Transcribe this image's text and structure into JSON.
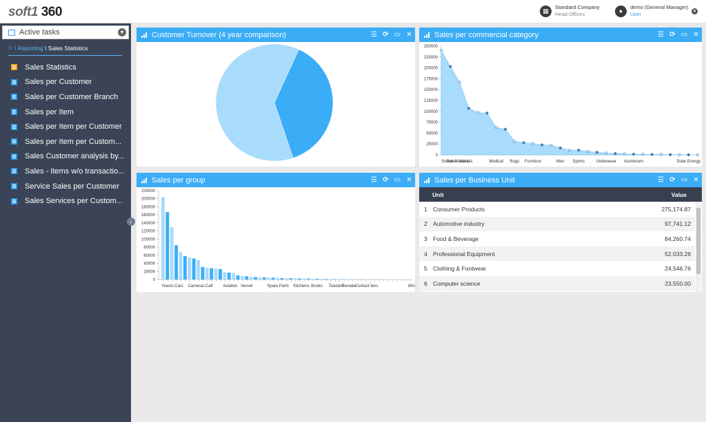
{
  "app": {
    "logo_a": "soft1",
    "logo_b": "360"
  },
  "company": {
    "name": "Standard Company",
    "branch": "Head Offices"
  },
  "user": {
    "name": "demo (General Manager)",
    "role": "User"
  },
  "sidebar": {
    "tasks_label": "Active tasks",
    "breadcrumb": {
      "sep1": "\\",
      "link": "Reporting",
      "sep2": "\\",
      "current": "Sales Statistics"
    },
    "items": [
      {
        "label": "Sales Statistics",
        "icon": "folder-icon"
      },
      {
        "label": "Sales per Customer",
        "icon": "report-icon"
      },
      {
        "label": "Sales per Customer Branch",
        "icon": "report-icon"
      },
      {
        "label": "Sales per Item",
        "icon": "report-icon"
      },
      {
        "label": "Sales per Item per Customer",
        "icon": "report-icon"
      },
      {
        "label": "Sales per Item per Custom...",
        "icon": "report-icon"
      },
      {
        "label": "Sales Customer analysis by...",
        "icon": "report-icon"
      },
      {
        "label": "Sales - Items w/o transactio...",
        "icon": "report-icon"
      },
      {
        "label": "Service Sales per Customer",
        "icon": "report-icon"
      },
      {
        "label": "Sales Services per Custom...",
        "icon": "report-icon"
      }
    ]
  },
  "panels": {
    "turnover": {
      "title": "Customer Turnover (4 year comparison)"
    },
    "category": {
      "title": "Sales per commercial category"
    },
    "group": {
      "title": "Sales per group"
    },
    "unit": {
      "title": "Sales per Business Unit"
    }
  },
  "colors": {
    "accent": "#3badf6",
    "sidebar": "#3a4456",
    "pie_light": "#a8dbfc",
    "pie_dark": "#3badf6"
  },
  "chart_data": [
    {
      "type": "pie",
      "values": [
        38,
        62
      ],
      "colors": [
        "#3badf6",
        "#a8dbfc"
      ]
    },
    {
      "type": "area",
      "ylim": [
        0,
        250000
      ],
      "yticks": [
        0,
        25000,
        50000,
        75000,
        100000,
        125000,
        150000,
        175000,
        200000,
        225000,
        250000
      ],
      "ytick_labels": [
        "0",
        "25000",
        "50000",
        "75000",
        "100000",
        "125000",
        "150000",
        "175000",
        "200000",
        "225000",
        "250000"
      ],
      "xtick_labels": [
        {
          "i": 0,
          "label": "Sound & Vision"
        },
        {
          "i": 2,
          "label": "Raw materials"
        },
        {
          "i": 6,
          "label": "Medical"
        },
        {
          "i": 8,
          "label": "Rugs"
        },
        {
          "i": 10,
          "label": "Furniture"
        },
        {
          "i": 13,
          "label": "Men"
        },
        {
          "i": 15,
          "label": "Sports"
        },
        {
          "i": 18,
          "label": "Underwear"
        },
        {
          "i": 21,
          "label": "Aluminium"
        },
        {
          "i": 27,
          "label": "Solar Energy"
        }
      ],
      "values": [
        240000,
        203000,
        167000,
        107000,
        97000,
        96000,
        63000,
        59000,
        31000,
        28000,
        26000,
        23000,
        22000,
        16000,
        11000,
        11000,
        8000,
        6000,
        4000,
        3000,
        2000,
        1500,
        1200,
        1000,
        800,
        600,
        400,
        200,
        100
      ]
    },
    {
      "type": "bar",
      "ylim": [
        0,
        220000
      ],
      "yticks": [
        0,
        20000,
        40000,
        60000,
        80000,
        100000,
        120000,
        140000,
        160000,
        180000,
        200000,
        220000
      ],
      "ytick_labels": [
        "0",
        "20000",
        "40000",
        "60000",
        "80000",
        "100000",
        "120000",
        "140000",
        "160000",
        "180000",
        "200000",
        "220000"
      ],
      "xtick_labels": [
        {
          "i": 0,
          "label": "Yeasts"
        },
        {
          "i": 3,
          "label": "Cars"
        },
        {
          "i": 6,
          "label": "Cameras"
        },
        {
          "i": 10,
          "label": "Calf"
        },
        {
          "i": 14,
          "label": "Aviation"
        },
        {
          "i": 18,
          "label": "Vessel"
        },
        {
          "i": 24,
          "label": "Spare Parts"
        },
        {
          "i": 30,
          "label": "Kitchens"
        },
        {
          "i": 34,
          "label": "Books"
        },
        {
          "i": 38,
          "label": "Toasters"
        },
        {
          "i": 41,
          "label": "Female"
        },
        {
          "i": 44,
          "label": "Contact lens"
        },
        {
          "i": 56,
          "label": "Windows"
        }
      ],
      "values": [
        204000,
        167000,
        130000,
        85000,
        68000,
        58000,
        55000,
        52000,
        48000,
        31000,
        29000,
        28000,
        27000,
        26000,
        18000,
        17000,
        16000,
        10000,
        9000,
        8000,
        7000,
        6000,
        5500,
        5000,
        4800,
        4500,
        4000,
        3500,
        3200,
        3000,
        2800,
        2600,
        2400,
        2200,
        2000,
        1800,
        1600,
        1400,
        1200,
        1000,
        900,
        800,
        700,
        600,
        500,
        450,
        400,
        350,
        300,
        250,
        200,
        180,
        160,
        140,
        120,
        100,
        80
      ]
    },
    {
      "type": "table",
      "columns": [
        "Unit",
        "Value"
      ],
      "rows": [
        {
          "n": "1",
          "unit": "Consumer Products",
          "value": "275,174.87"
        },
        {
          "n": "2",
          "unit": "Automotive industry",
          "value": "97,741.12"
        },
        {
          "n": "3",
          "unit": "Food & Beverage",
          "value": "84,260.74"
        },
        {
          "n": "4",
          "unit": "Professional Equipment",
          "value": "52,033.28"
        },
        {
          "n": "5",
          "unit": "Clothing & Footwear",
          "value": "24,546.76"
        },
        {
          "n": "6",
          "unit": "Computer science",
          "value": "23,550.00"
        }
      ]
    }
  ]
}
